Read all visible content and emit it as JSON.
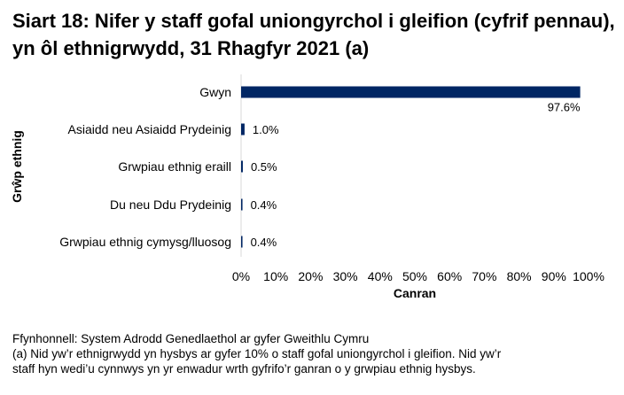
{
  "chart_data": {
    "type": "bar",
    "orientation": "horizontal",
    "title": "Siart 18: Nifer y staff gofal uniongyrchol i gleifion (cyfrif pennau), yn ôl ethnigrwydd, 31 Rhagfyr 2021 (a)",
    "xlabel": "Canran",
    "ylabel": "Grŵp ethnig",
    "categories": [
      "Gwyn",
      "Asiaidd neu Asiaidd Prydeinig",
      "Grwpiau ethnig eraill",
      "Du neu Ddu Prydeinig",
      "Grwpiau ethnig cymysg/lluosog"
    ],
    "values": [
      97.6,
      1.0,
      0.5,
      0.4,
      0.4
    ],
    "data_labels": [
      "97.6%",
      "1.0%",
      "0.5%",
      "0.4%",
      "0.4%"
    ],
    "xlim": [
      0,
      100
    ],
    "x_ticks": [
      0,
      10,
      20,
      30,
      40,
      50,
      60,
      70,
      80,
      90,
      100
    ],
    "x_tick_labels": [
      "0%",
      "10%",
      "20%",
      "30%",
      "40%",
      "50%",
      "60%",
      "70%",
      "80%",
      "90%",
      "100%"
    ],
    "grid": false,
    "legend": "none",
    "bar_color": "#002664"
  },
  "footer": {
    "source": "Ffynhonnell: System Adrodd Genedlaethol ar gyfer Gweithlu Cymru",
    "note_line1": "(a) Nid yw’r ethnigrwydd yn hysbys ar gyfer 10% o staff gofal uniongyrchol i gleifion. Nid yw’r",
    "note_line2": "staff hyn wedi’u cynnwys yn yr enwadur wrth gyfrifo’r ganran o y grwpiau ethnig hysbys."
  }
}
